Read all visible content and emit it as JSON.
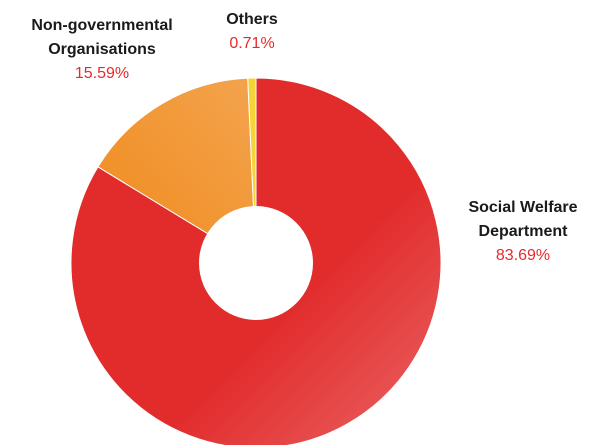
{
  "chart_data": {
    "type": "pie",
    "donut": true,
    "title": "",
    "slices": [
      {
        "label_lines": [
          "Social Welfare",
          "Department"
        ],
        "value": 83.69,
        "value_text": "83.69%",
        "color": "#e22b2b",
        "label_position": "right"
      },
      {
        "label_lines": [
          "Non-governmental",
          "Organisations"
        ],
        "value": 15.59,
        "value_text": "15.59%",
        "color": "#f08a1c",
        "label_position": "top-left"
      },
      {
        "label_lines": [
          "Others"
        ],
        "value": 0.71,
        "value_text": "0.71%",
        "color": "#f7d436",
        "label_position": "top"
      }
    ],
    "value_color": "#e8292b",
    "legend": "none",
    "grid": false
  }
}
